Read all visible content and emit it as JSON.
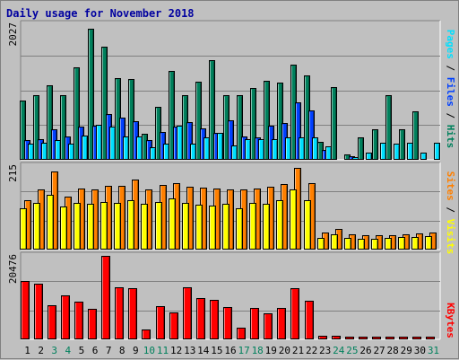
{
  "title": "Daily usage for November 2018",
  "legend": {
    "pages": "Pages",
    "files": "Files",
    "hits": "Hits",
    "sites": "Sites",
    "visits": "Visits",
    "kbytes": "KBytes",
    "separator": " / "
  },
  "colors": {
    "hits": "#00805c",
    "files": "#0040ff",
    "pages": "#00e0ff",
    "visits": "#ffff00",
    "sites": "#ff8000",
    "kbytes": "#ff0000",
    "plot_bg": "#c0c0c0",
    "grid": "#808080",
    "weekend_label": "#00805c",
    "weekday_label": "#000000",
    "title": "#0000a0"
  },
  "chart_data": [
    {
      "type": "bar",
      "name": "requests",
      "categories": [
        "1",
        "2",
        "3",
        "4",
        "5",
        "6",
        "7",
        "8",
        "9",
        "10",
        "11",
        "12",
        "13",
        "14",
        "15",
        "16",
        "17",
        "18",
        "19",
        "20",
        "21",
        "22",
        "23",
        "24",
        "25",
        "26",
        "27",
        "28",
        "29",
        "30",
        "31"
      ],
      "weekend_days": [
        "3",
        "4",
        "10",
        "11",
        "17",
        "18",
        "24",
        "25",
        "31"
      ],
      "ylim": [
        0,
        2027
      ],
      "max_label": "2027",
      "series": [
        {
          "name": "Hits",
          "values": [
            890,
            965,
            1120,
            970,
            1385,
            1955,
            1695,
            1220,
            1205,
            390,
            790,
            1325,
            965,
            1165,
            1485,
            965,
            965,
            1080,
            1175,
            1155,
            1425,
            1265,
            265,
            1090,
            75,
            340,
            455,
            965,
            455,
            720,
            0
          ]
        },
        {
          "name": "Files",
          "values": [
            300,
            305,
            460,
            345,
            490,
            505,
            685,
            635,
            575,
            290,
            415,
            495,
            565,
            475,
            400,
            595,
            345,
            340,
            510,
            545,
            860,
            735,
            150,
            0,
            60,
            0,
            0,
            0,
            0,
            0,
            0
          ]
        },
        {
          "name": "Pages",
          "values": [
            235,
            250,
            295,
            245,
            365,
            525,
            490,
            345,
            350,
            190,
            245,
            505,
            235,
            330,
            400,
            210,
            310,
            305,
            315,
            340,
            340,
            335,
            205,
            0,
            40,
            105,
            255,
            245,
            255,
            110,
            255
          ]
        }
      ]
    },
    {
      "type": "bar",
      "name": "sites-visits",
      "categories": [
        "1",
        "2",
        "3",
        "4",
        "5",
        "6",
        "7",
        "8",
        "9",
        "10",
        "11",
        "12",
        "13",
        "14",
        "15",
        "16",
        "17",
        "18",
        "19",
        "20",
        "21",
        "22",
        "23",
        "24",
        "25",
        "26",
        "27",
        "28",
        "29",
        "30",
        "31"
      ],
      "ylim": [
        0,
        215
      ],
      "max_label": "215",
      "series": [
        {
          "name": "Sites",
          "values": [
            127,
            154,
            201,
            137,
            158,
            155,
            165,
            164,
            180,
            154,
            167,
            172,
            162,
            160,
            157,
            155,
            154,
            158,
            162,
            168,
            211,
            170,
            44,
            54,
            40,
            36,
            36,
            38,
            40,
            42,
            44
          ]
        },
        {
          "name": "Visits",
          "values": [
            107,
            121,
            142,
            112,
            121,
            119,
            122,
            120,
            126,
            117,
            123,
            132,
            121,
            115,
            113,
            118,
            107,
            120,
            118,
            126,
            154,
            128,
            29,
            40,
            31,
            28,
            28,
            30,
            32,
            32,
            34
          ]
        }
      ]
    },
    {
      "type": "bar",
      "name": "kbytes",
      "categories": [
        "1",
        "2",
        "3",
        "4",
        "5",
        "6",
        "7",
        "8",
        "9",
        "10",
        "11",
        "12",
        "13",
        "14",
        "15",
        "16",
        "17",
        "18",
        "19",
        "20",
        "21",
        "22",
        "23",
        "24",
        "25",
        "26",
        "27",
        "28",
        "29",
        "30",
        "31"
      ],
      "ylim": [
        0,
        20476
      ],
      "max_label": "20476",
      "series": [
        {
          "name": "KBytes",
          "values": [
            14360,
            13620,
            8420,
            10810,
            9160,
            7550,
            20476,
            12670,
            12530,
            2530,
            8180,
            6500,
            12870,
            10190,
            9630,
            7890,
            2950,
            7730,
            6330,
            7620,
            12470,
            9470,
            900,
            900,
            720,
            720,
            720,
            720,
            720,
            720,
            720
          ]
        }
      ]
    }
  ]
}
